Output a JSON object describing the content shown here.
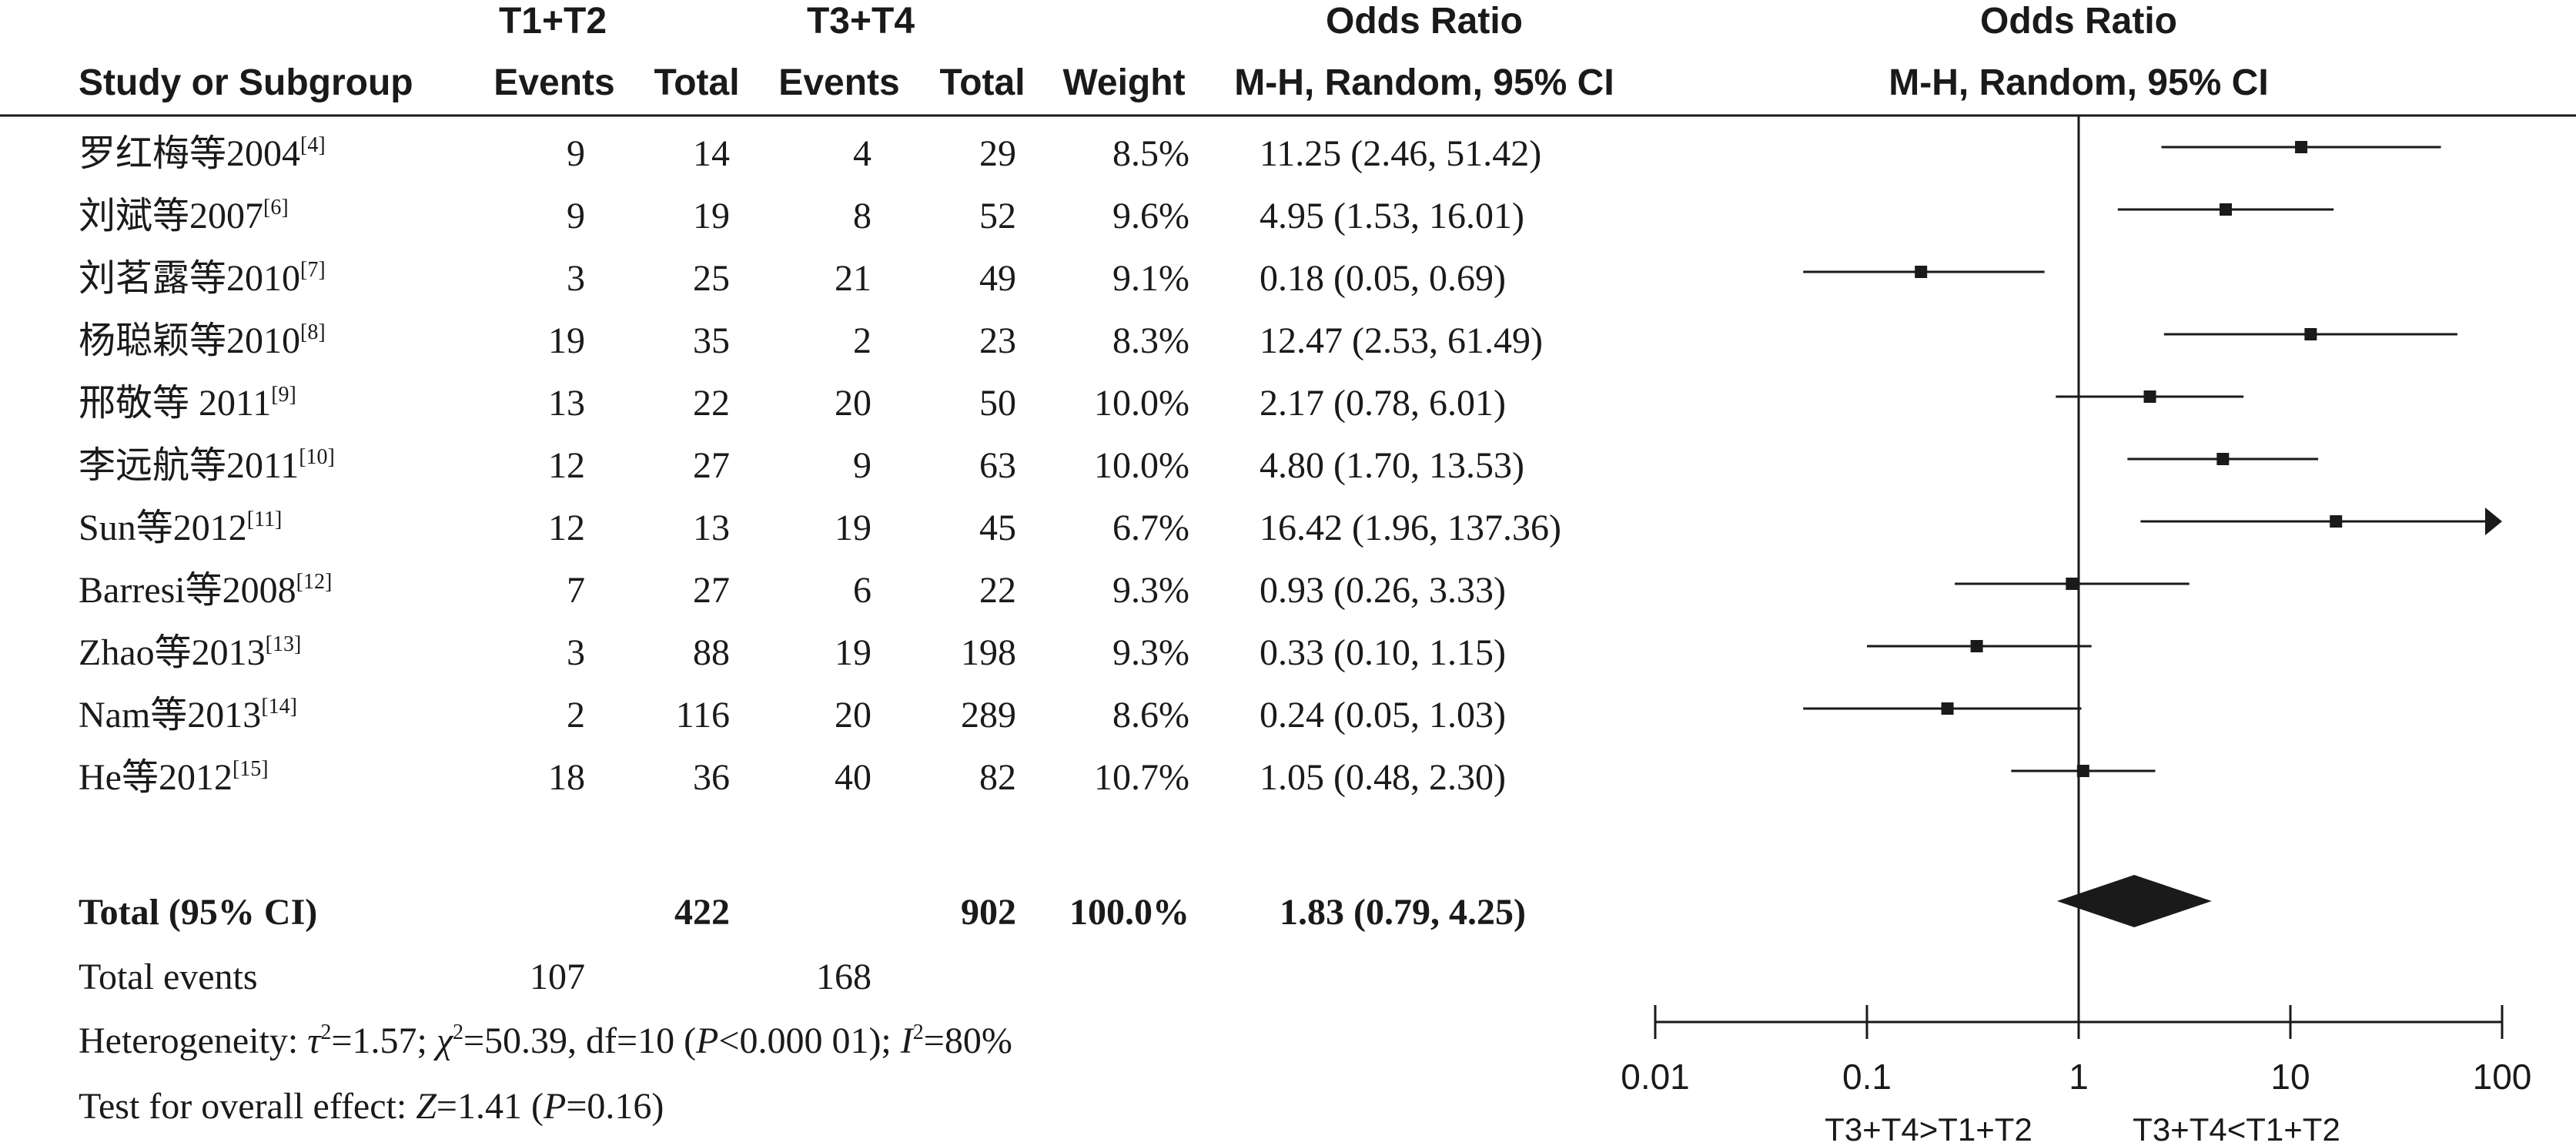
{
  "headers": {
    "group1": "T1+T2",
    "group2": "T3+T4",
    "or_title": "Odds Ratio",
    "study": "Study or Subgroup",
    "events1": "Events",
    "total1": "Total",
    "events2": "Events",
    "total2": "Total",
    "weight": "Weight",
    "or_method": "M-H, Random, 95% CI",
    "plot_title": "Odds Ratio",
    "plot_method": "M-H, Random, 95% CI"
  },
  "summary": {
    "label": "Total (95% CI)",
    "total1": "422",
    "total2": "902",
    "weight": "100.0%",
    "ci_text": "1.83 (0.79, 4.25)",
    "events_label": "Total events",
    "events1": "107",
    "events2": "168",
    "heterogeneity_label": "Heterogeneity: ",
    "het_tau": "τ",
    "het_tau_val": "=1.57; ",
    "het_chi": "χ",
    "het_chi_val": "=50.39, df=10 (",
    "het_p": "P",
    "het_p_val": "<0.000 01); ",
    "het_i": "I",
    "het_i_val": "=80%",
    "het_sup2": "2",
    "overall_label": "Test for overall effect: ",
    "overall_z": "Z",
    "overall_z_val": "=1.41 (",
    "overall_p": "P",
    "overall_p_val": "=0.16)"
  },
  "chart_data": {
    "type": "forest",
    "scale": "log",
    "xlim": [
      0.01,
      100
    ],
    "ticks": [
      "0.01",
      "0.1",
      "1",
      "10",
      "100"
    ],
    "favours_left": "T3+T4>T1+T2",
    "favours_right": "T3+T4<T1+T2",
    "studies": [
      {
        "name": "罗红梅等2004",
        "ref": "[4]",
        "events1": "9",
        "total1": "14",
        "events2": "4",
        "total2": "29",
        "weight": "8.5%",
        "ci_text": "11.25 (2.46, 51.42)",
        "or": 11.25,
        "lo": 2.46,
        "hi": 51.42
      },
      {
        "name": "刘斌等2007",
        "ref": "[6]",
        "events1": "9",
        "total1": "19",
        "events2": "8",
        "total2": "52",
        "weight": "9.6%",
        "ci_text": "4.95 (1.53, 16.01)",
        "or": 4.95,
        "lo": 1.53,
        "hi": 16.01
      },
      {
        "name": "刘茗露等2010",
        "ref": "[7]",
        "events1": "3",
        "total1": "25",
        "events2": "21",
        "total2": "49",
        "weight": "9.1%",
        "ci_text": "0.18 (0.05, 0.69)",
        "or": 0.18,
        "lo": 0.05,
        "hi": 0.69
      },
      {
        "name": "杨聪颖等2010",
        "ref": "[8]",
        "events1": "19",
        "total1": "35",
        "events2": "2",
        "total2": "23",
        "weight": "8.3%",
        "ci_text": "12.47 (2.53, 61.49)",
        "or": 12.47,
        "lo": 2.53,
        "hi": 61.49
      },
      {
        "name": "邢敬等 2011",
        "ref": "[9]",
        "events1": "13",
        "total1": "22",
        "events2": "20",
        "total2": "50",
        "weight": "10.0%",
        "ci_text": "2.17 (0.78, 6.01)",
        "or": 2.17,
        "lo": 0.78,
        "hi": 6.01
      },
      {
        "name": "李远航等2011",
        "ref": "[10]",
        "events1": "12",
        "total1": "27",
        "events2": "9",
        "total2": "63",
        "weight": "10.0%",
        "ci_text": "4.80 (1.70, 13.53)",
        "or": 4.8,
        "lo": 1.7,
        "hi": 13.53
      },
      {
        "name": "Sun等2012",
        "ref": "[11]",
        "events1": "12",
        "total1": "13",
        "events2": "19",
        "total2": "45",
        "weight": "6.7%",
        "ci_text": "16.42 (1.96, 137.36)",
        "or": 16.42,
        "lo": 1.96,
        "hi": 137.36
      },
      {
        "name": "Barresi等2008",
        "ref": "[12]",
        "events1": "7",
        "total1": "27",
        "events2": "6",
        "total2": "22",
        "weight": "9.3%",
        "ci_text": "0.93 (0.26, 3.33)",
        "or": 0.93,
        "lo": 0.26,
        "hi": 3.33
      },
      {
        "name": "Zhao等2013",
        "ref": "[13]",
        "events1": "3",
        "total1": "88",
        "events2": "19",
        "total2": "198",
        "weight": "9.3%",
        "ci_text": "0.33 (0.10, 1.15)",
        "or": 0.33,
        "lo": 0.1,
        "hi": 1.15
      },
      {
        "name": "Nam等2013",
        "ref": "[14]",
        "events1": "2",
        "total1": "116",
        "events2": "20",
        "total2": "289",
        "weight": "8.6%",
        "ci_text": "0.24 (0.05, 1.03)",
        "or": 0.24,
        "lo": 0.05,
        "hi": 1.03
      },
      {
        "name": "He等2012",
        "ref": "[15]",
        "events1": "18",
        "total1": "36",
        "events2": "40",
        "total2": "82",
        "weight": "10.7%",
        "ci_text": "1.05 (0.48, 2.30)",
        "or": 1.05,
        "lo": 0.48,
        "hi": 2.3
      }
    ],
    "pooled": {
      "or": 1.83,
      "lo": 0.79,
      "hi": 4.25
    }
  }
}
